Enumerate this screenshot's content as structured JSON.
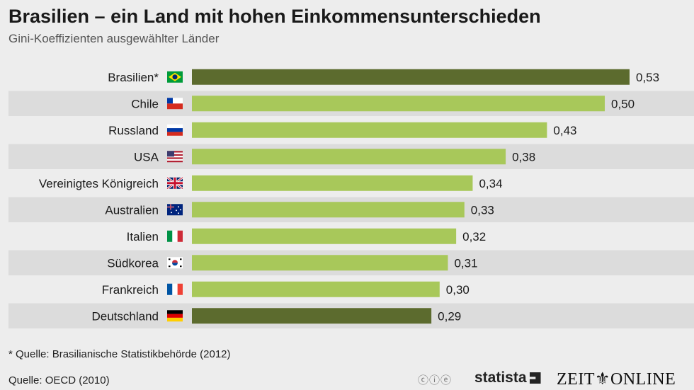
{
  "title": "Brasilien – ein Land mit hohen Einkommensunterschieden",
  "subtitle": "Gini-Koeffizienten ausgewählter Länder",
  "colors": {
    "highlight": "#5c6b2e",
    "normal": "#a8c85a",
    "stripe": "#dcdcdc",
    "background": "#ededed"
  },
  "chart_data": {
    "type": "bar",
    "orientation": "horizontal",
    "title": "Brasilien – ein Land mit hohen Einkommensunterschieden",
    "subtitle": "Gini-Koeffizienten ausgewählter Länder",
    "categories": [
      "Brasilien*",
      "Chile",
      "Russland",
      "USA",
      "Vereinigtes Königreich",
      "Australien",
      "Italien",
      "Südkorea",
      "Frankreich",
      "Deutschland"
    ],
    "values": [
      0.53,
      0.5,
      0.43,
      0.38,
      0.34,
      0.33,
      0.32,
      0.31,
      0.3,
      0.29
    ],
    "value_labels": [
      "0,53",
      "0,50",
      "0,43",
      "0,38",
      "0,34",
      "0,33",
      "0,32",
      "0,31",
      "0,30",
      "0,29"
    ],
    "highlighted": [
      "Brasilien*",
      "Deutschland"
    ],
    "flags": [
      "brazil-flag-icon",
      "chile-flag-icon",
      "russia-flag-icon",
      "usa-flag-icon",
      "uk-flag-icon",
      "australia-flag-icon",
      "italy-flag-icon",
      "south-korea-flag-icon",
      "france-flag-icon",
      "germany-flag-icon"
    ],
    "xlim": [
      0,
      0.53
    ],
    "xlabel": "",
    "ylabel": "",
    "grid": false
  },
  "footnote": "* Quelle: Brasilianische Statistikbehörde (2012)",
  "source": "Quelle: OECD (2010)",
  "cc_icons": "ⓒⓘⓔ",
  "statista_logo": "statista",
  "zeit_logo": "ZEIT⚜ONLINE"
}
